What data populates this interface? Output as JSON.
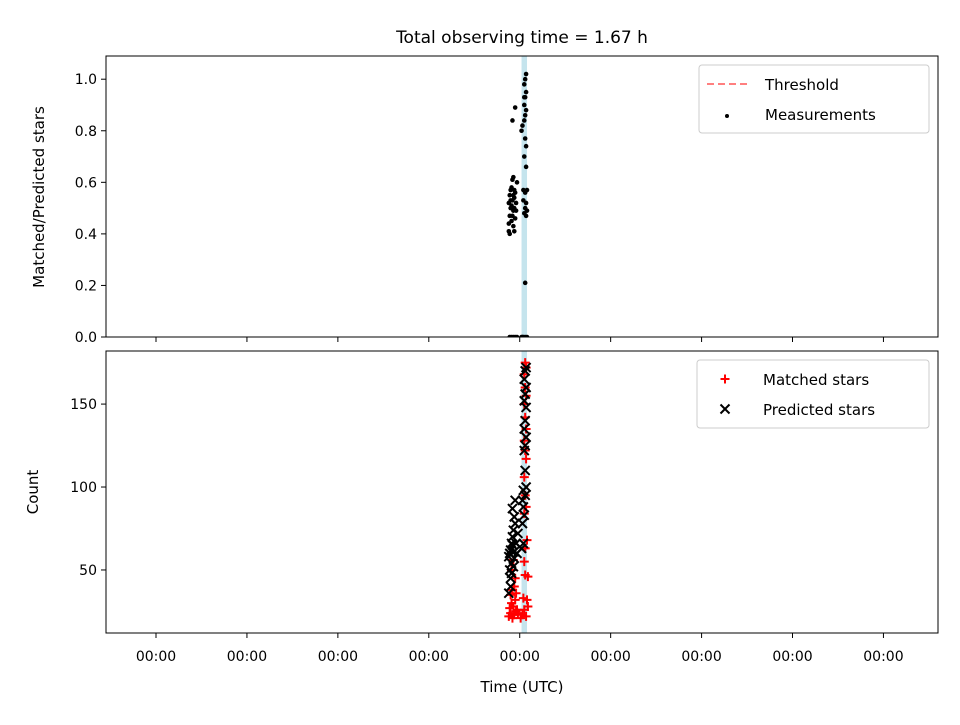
{
  "chart_data": [
    {
      "type": "scatter",
      "panel": "top",
      "title": "Total observing time = 1.67 h",
      "xlabel": "",
      "ylabel": "Matched/Predicted stars",
      "ylim": [
        0,
        1.09
      ],
      "yticks": [
        "0.0",
        "0.2",
        "0.4",
        "0.6",
        "0.8",
        "1.0"
      ],
      "ytick_values": [
        0,
        0.2,
        0.4,
        0.6,
        0.8,
        1.0
      ],
      "xlim": [
        -4.55,
        4.6
      ],
      "xtick_values": [
        -4,
        -3,
        -2,
        -1,
        0,
        1,
        2,
        3,
        4
      ],
      "xtick_labels": [
        "",
        "",
        "",
        "",
        "",
        "",
        "",
        "",
        ""
      ],
      "grid": false,
      "legend_position": "top-right",
      "threshold_band": {
        "x_from": 0.02,
        "x_to": 0.08,
        "color": "#add8e6"
      },
      "series": [
        {
          "name": "Threshold",
          "style": "dashed-line",
          "color": "#ff7f7f",
          "values": []
        },
        {
          "name": "Measurements",
          "style": "dot",
          "color": "#000000",
          "points": [
            [
              -0.11,
              0.0
            ],
            [
              -0.09,
              0.0
            ],
            [
              -0.07,
              0.0
            ],
            [
              -0.05,
              0.0
            ],
            [
              -0.03,
              0.0
            ],
            [
              0.02,
              0.0
            ],
            [
              0.04,
              0.0
            ],
            [
              0.06,
              0.0
            ],
            [
              0.08,
              0.0
            ],
            [
              0.03,
              0.0
            ],
            [
              -0.12,
              0.41
            ],
            [
              -0.11,
              0.4
            ],
            [
              -0.12,
              0.44
            ],
            [
              -0.11,
              0.47
            ],
            [
              -0.1,
              0.5
            ],
            [
              -0.12,
              0.52
            ],
            [
              -0.1,
              0.53
            ],
            [
              -0.09,
              0.51
            ],
            [
              -0.11,
              0.55
            ],
            [
              -0.08,
              0.53
            ],
            [
              -0.09,
              0.58
            ],
            [
              -0.08,
              0.61
            ],
            [
              -0.07,
              0.62
            ],
            [
              -0.06,
              0.57
            ],
            [
              -0.09,
              0.45
            ],
            [
              -0.07,
              0.49
            ],
            [
              -0.06,
              0.5
            ],
            [
              -0.08,
              0.47
            ],
            [
              -0.07,
              0.43
            ],
            [
              -0.06,
              0.41
            ],
            [
              -0.08,
              0.84
            ],
            [
              -0.05,
              0.89
            ],
            [
              -0.06,
              0.54
            ],
            [
              -0.05,
              0.56
            ],
            [
              -0.04,
              0.52
            ],
            [
              -0.05,
              0.46
            ],
            [
              -0.04,
              0.49
            ],
            [
              -0.03,
              0.6
            ],
            [
              -0.07,
              0.55
            ],
            [
              -0.1,
              0.57
            ],
            [
              0.02,
              0.8
            ],
            [
              0.03,
              0.82
            ],
            [
              0.05,
              0.84
            ],
            [
              0.06,
              0.86
            ],
            [
              0.07,
              0.88
            ],
            [
              0.05,
              0.9
            ],
            [
              0.06,
              0.93
            ],
            [
              0.07,
              0.95
            ],
            [
              0.05,
              0.98
            ],
            [
              0.06,
              1.0
            ],
            [
              0.07,
              1.02
            ],
            [
              0.05,
              0.93
            ],
            [
              0.06,
              0.77
            ],
            [
              0.07,
              0.74
            ],
            [
              0.05,
              0.7
            ],
            [
              0.07,
              0.66
            ],
            [
              0.04,
              0.57
            ],
            [
              0.06,
              0.56
            ],
            [
              0.08,
              0.57
            ],
            [
              0.07,
              0.52
            ],
            [
              0.06,
              0.5
            ],
            [
              0.08,
              0.49
            ],
            [
              0.07,
              0.47
            ],
            [
              0.05,
              0.48
            ],
            [
              0.04,
              0.53
            ],
            [
              0.06,
              0.21
            ]
          ]
        }
      ]
    },
    {
      "type": "scatter",
      "panel": "bottom",
      "title": "",
      "xlabel": "Time (UTC)",
      "ylabel": "Count",
      "ylim": [
        12,
        182
      ],
      "yticks": [
        "50",
        "100",
        "150"
      ],
      "ytick_values": [
        50,
        100,
        150
      ],
      "xlim": [
        -4.55,
        4.6
      ],
      "xtick_values": [
        -4,
        -3,
        -2,
        -1,
        0,
        1,
        2,
        3,
        4
      ],
      "xtick_labels": [
        "00:00",
        "00:00",
        "00:00",
        "00:00",
        "00:00",
        "00:00",
        "00:00",
        "00:00",
        "00:00"
      ],
      "grid": false,
      "legend_position": "top-right",
      "threshold_band": {
        "x_from": 0.02,
        "x_to": 0.08,
        "color": "#add8e6"
      },
      "series": [
        {
          "name": "Matched stars",
          "style": "plus",
          "color": "#ff0000",
          "points": [
            [
              -0.12,
              22
            ],
            [
              -0.1,
              24
            ],
            [
              -0.08,
              21
            ],
            [
              -0.06,
              23
            ],
            [
              -0.04,
              25
            ],
            [
              -0.11,
              27
            ],
            [
              -0.09,
              30
            ],
            [
              -0.07,
              28
            ],
            [
              -0.05,
              32
            ],
            [
              -0.03,
              26
            ],
            [
              -0.1,
              35
            ],
            [
              -0.08,
              38
            ],
            [
              -0.06,
              40
            ],
            [
              -0.04,
              36
            ],
            [
              -0.02,
              24
            ],
            [
              0.01,
              21
            ],
            [
              0.03,
              23
            ],
            [
              0.05,
              26
            ],
            [
              0.07,
              22
            ],
            [
              0.09,
              28
            ],
            [
              0.04,
              33
            ],
            [
              0.08,
              32
            ],
            [
              0.06,
              47
            ],
            [
              0.09,
              46
            ],
            [
              0.05,
              55
            ],
            [
              0.06,
              63
            ],
            [
              0.08,
              68
            ],
            [
              0.05,
              84
            ],
            [
              0.07,
              88
            ],
            [
              0.06,
              95
            ],
            [
              0.05,
              106
            ],
            [
              0.07,
              117
            ],
            [
              0.06,
              122
            ],
            [
              0.05,
              128
            ],
            [
              0.07,
              135
            ],
            [
              0.06,
              142
            ],
            [
              0.05,
              150
            ],
            [
              0.07,
              155
            ],
            [
              0.06,
              160
            ],
            [
              0.05,
              168
            ],
            [
              0.07,
              172
            ],
            [
              0.06,
              175
            ],
            [
              -0.09,
              50
            ],
            [
              -0.07,
              56
            ],
            [
              -0.05,
              45
            ]
          ]
        },
        {
          "name": "Predicted stars",
          "style": "x",
          "color": "#000000",
          "points": [
            [
              -0.12,
              36
            ],
            [
              -0.1,
              45
            ],
            [
              -0.11,
              50
            ],
            [
              -0.09,
              54
            ],
            [
              -0.12,
              58
            ],
            [
              -0.1,
              62
            ],
            [
              -0.08,
              65
            ],
            [
              -0.11,
              60
            ],
            [
              -0.09,
              48
            ],
            [
              -0.07,
              52
            ],
            [
              -0.06,
              57
            ],
            [
              -0.08,
              70
            ],
            [
              -0.07,
              74
            ],
            [
              -0.05,
              78
            ],
            [
              -0.06,
              82
            ],
            [
              -0.08,
              87
            ],
            [
              -0.05,
              92
            ],
            [
              -0.03,
              60
            ],
            [
              -0.04,
              66
            ],
            [
              -0.02,
              72
            ],
            [
              0.02,
              63
            ],
            [
              0.04,
              66
            ],
            [
              0.05,
              83
            ],
            [
              0.03,
              92
            ],
            [
              0.06,
              95
            ],
            [
              0.04,
              98
            ],
            [
              0.07,
              100
            ],
            [
              0.05,
              122
            ],
            [
              0.06,
              125
            ],
            [
              0.07,
              130
            ],
            [
              0.05,
              135
            ],
            [
              0.06,
              140
            ],
            [
              0.07,
              148
            ],
            [
              0.05,
              152
            ],
            [
              0.06,
              156
            ],
            [
              0.07,
              160
            ],
            [
              0.05,
              165
            ],
            [
              0.06,
              170
            ],
            [
              0.07,
              172
            ],
            [
              -0.1,
              40
            ],
            [
              -0.09,
              66
            ],
            [
              -0.06,
              61
            ],
            [
              0.03,
              78
            ],
            [
              0.04,
              88
            ],
            [
              0.06,
              110
            ]
          ]
        }
      ]
    }
  ]
}
